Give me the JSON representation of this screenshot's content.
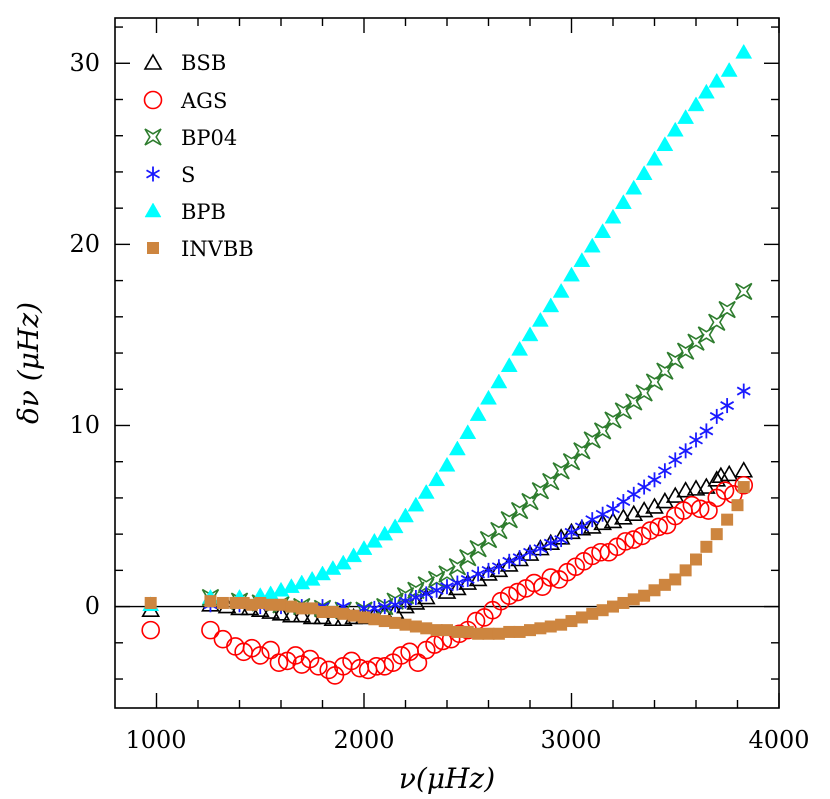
{
  "chart_data": {
    "type": "scatter",
    "title": "",
    "xlabel": "ν(μHz)",
    "ylabel": "δν (μHz)",
    "xlim": [
      800,
      4000
    ],
    "ylim": [
      -5.6,
      32.5
    ],
    "x_ticks": [
      1000,
      2000,
      3000,
      4000
    ],
    "y_ticks": [
      0,
      10,
      20,
      30
    ],
    "x_tick_labels": [
      "1000",
      "2000",
      "3000",
      "4000"
    ],
    "y_tick_labels": [
      "0",
      "10",
      "20",
      "30"
    ],
    "legend_position": "top-left",
    "grid": false,
    "zero_line": true,
    "series": [
      {
        "name": "BSB",
        "marker": "triangle-open",
        "color": "#000000",
        "points": [
          [
            972,
            -0.2
          ],
          [
            1260,
            0.1
          ],
          [
            1340,
            0.0
          ],
          [
            1400,
            -0.1
          ],
          [
            1450,
            -0.1
          ],
          [
            1500,
            -0.2
          ],
          [
            1550,
            -0.3
          ],
          [
            1600,
            -0.4
          ],
          [
            1650,
            -0.5
          ],
          [
            1700,
            -0.5
          ],
          [
            1750,
            -0.6
          ],
          [
            1800,
            -0.6
          ],
          [
            1850,
            -0.7
          ],
          [
            1900,
            -0.7
          ],
          [
            1950,
            -0.6
          ],
          [
            2000,
            -0.6
          ],
          [
            2050,
            -0.5
          ],
          [
            2100,
            -0.4
          ],
          [
            2150,
            -0.3
          ],
          [
            2200,
            0.0
          ],
          [
            2250,
            0.2
          ],
          [
            2300,
            0.5
          ],
          [
            2400,
            0.8
          ],
          [
            2450,
            1.0
          ],
          [
            2500,
            1.3
          ],
          [
            2550,
            1.5
          ],
          [
            2600,
            1.8
          ],
          [
            2650,
            2.0
          ],
          [
            2700,
            2.3
          ],
          [
            2750,
            2.6
          ],
          [
            2800,
            2.9
          ],
          [
            2850,
            3.2
          ],
          [
            2900,
            3.5
          ],
          [
            2950,
            3.8
          ],
          [
            3000,
            4.1
          ],
          [
            3050,
            4.3
          ],
          [
            3100,
            4.4
          ],
          [
            3150,
            4.6
          ],
          [
            3200,
            4.7
          ],
          [
            3250,
            4.9
          ],
          [
            3300,
            5.1
          ],
          [
            3350,
            5.3
          ],
          [
            3400,
            5.5
          ],
          [
            3450,
            5.8
          ],
          [
            3500,
            6.1
          ],
          [
            3550,
            6.4
          ],
          [
            3600,
            6.5
          ],
          [
            3650,
            6.6
          ],
          [
            3700,
            7.0
          ],
          [
            3720,
            7.2
          ],
          [
            3760,
            7.3
          ],
          [
            3830,
            7.5
          ]
        ]
      },
      {
        "name": "AGS",
        "marker": "circle-open",
        "color": "#ff0000",
        "points": [
          [
            972,
            -1.3
          ],
          [
            1260,
            -1.3
          ],
          [
            1320,
            -1.8
          ],
          [
            1380,
            -2.2
          ],
          [
            1420,
            -2.5
          ],
          [
            1460,
            -2.3
          ],
          [
            1500,
            -2.7
          ],
          [
            1550,
            -2.4
          ],
          [
            1590,
            -3.1
          ],
          [
            1630,
            -3.0
          ],
          [
            1670,
            -2.7
          ],
          [
            1700,
            -3.2
          ],
          [
            1740,
            -2.9
          ],
          [
            1780,
            -3.3
          ],
          [
            1830,
            -3.5
          ],
          [
            1860,
            -3.8
          ],
          [
            1900,
            -3.3
          ],
          [
            1940,
            -3.0
          ],
          [
            1980,
            -3.4
          ],
          [
            2020,
            -3.5
          ],
          [
            2060,
            -3.3
          ],
          [
            2100,
            -3.3
          ],
          [
            2140,
            -3.1
          ],
          [
            2180,
            -2.7
          ],
          [
            2220,
            -2.5
          ],
          [
            2260,
            -3.1
          ],
          [
            2300,
            -2.4
          ],
          [
            2340,
            -2.1
          ],
          [
            2380,
            -1.9
          ],
          [
            2420,
            -1.8
          ],
          [
            2460,
            -1.5
          ],
          [
            2500,
            -1.3
          ],
          [
            2540,
            -0.8
          ],
          [
            2580,
            -0.6
          ],
          [
            2620,
            -0.2
          ],
          [
            2660,
            0.3
          ],
          [
            2700,
            0.6
          ],
          [
            2740,
            0.8
          ],
          [
            2780,
            1.0
          ],
          [
            2820,
            1.3
          ],
          [
            2860,
            1.1
          ],
          [
            2900,
            1.6
          ],
          [
            2940,
            1.5
          ],
          [
            2980,
            1.9
          ],
          [
            3020,
            2.2
          ],
          [
            3060,
            2.5
          ],
          [
            3100,
            2.8
          ],
          [
            3140,
            3.0
          ],
          [
            3180,
            3.0
          ],
          [
            3220,
            3.3
          ],
          [
            3260,
            3.6
          ],
          [
            3300,
            3.7
          ],
          [
            3340,
            3.9
          ],
          [
            3380,
            4.2
          ],
          [
            3420,
            4.4
          ],
          [
            3460,
            4.5
          ],
          [
            3500,
            5.0
          ],
          [
            3540,
            5.3
          ],
          [
            3580,
            5.6
          ],
          [
            3620,
            5.4
          ],
          [
            3660,
            5.3
          ],
          [
            3700,
            6.0
          ],
          [
            3740,
            6.4
          ],
          [
            3780,
            6.2
          ],
          [
            3830,
            6.7
          ]
        ]
      },
      {
        "name": "BP04",
        "marker": "star4-open",
        "color": "#2e7d2e",
        "points": [
          [
            1260,
            0.5
          ],
          [
            1400,
            0.3
          ],
          [
            1500,
            0.2
          ],
          [
            1600,
            0.1
          ],
          [
            1700,
            0.0
          ],
          [
            1800,
            -0.1
          ],
          [
            1900,
            -0.2
          ],
          [
            2000,
            -0.2
          ],
          [
            2100,
            0.0
          ],
          [
            2150,
            0.3
          ],
          [
            2200,
            0.6
          ],
          [
            2250,
            0.9
          ],
          [
            2300,
            1.2
          ],
          [
            2350,
            1.5
          ],
          [
            2400,
            1.8
          ],
          [
            2450,
            2.2
          ],
          [
            2500,
            2.7
          ],
          [
            2550,
            3.2
          ],
          [
            2600,
            3.7
          ],
          [
            2650,
            4.2
          ],
          [
            2700,
            4.8
          ],
          [
            2750,
            5.3
          ],
          [
            2800,
            5.8
          ],
          [
            2850,
            6.4
          ],
          [
            2900,
            6.9
          ],
          [
            2950,
            7.5
          ],
          [
            3000,
            8.0
          ],
          [
            3050,
            8.6
          ],
          [
            3100,
            9.2
          ],
          [
            3150,
            9.7
          ],
          [
            3200,
            10.3
          ],
          [
            3250,
            10.8
          ],
          [
            3300,
            11.3
          ],
          [
            3350,
            11.8
          ],
          [
            3400,
            12.4
          ],
          [
            3450,
            13.0
          ],
          [
            3500,
            13.6
          ],
          [
            3550,
            14.1
          ],
          [
            3600,
            14.6
          ],
          [
            3650,
            15.0
          ],
          [
            3700,
            15.7
          ],
          [
            3750,
            16.4
          ],
          [
            3830,
            17.4
          ]
        ]
      },
      {
        "name": "S",
        "marker": "asterisk",
        "color": "#1a1aff",
        "points": [
          [
            1260,
            0.1
          ],
          [
            1400,
            0.1
          ],
          [
            1500,
            0.0
          ],
          [
            1600,
            0.0
          ],
          [
            1700,
            0.0
          ],
          [
            1800,
            0.0
          ],
          [
            1900,
            0.0
          ],
          [
            2000,
            -0.1
          ],
          [
            2050,
            -0.1
          ],
          [
            2100,
            0.0
          ],
          [
            2150,
            0.1
          ],
          [
            2200,
            0.3
          ],
          [
            2250,
            0.5
          ],
          [
            2300,
            0.7
          ],
          [
            2350,
            0.9
          ],
          [
            2400,
            1.1
          ],
          [
            2450,
            1.3
          ],
          [
            2500,
            1.5
          ],
          [
            2550,
            1.8
          ],
          [
            2600,
            2.0
          ],
          [
            2650,
            2.2
          ],
          [
            2700,
            2.5
          ],
          [
            2750,
            2.7
          ],
          [
            2800,
            3.0
          ],
          [
            2850,
            3.2
          ],
          [
            2900,
            3.5
          ],
          [
            2950,
            3.7
          ],
          [
            3000,
            4.1
          ],
          [
            3050,
            4.4
          ],
          [
            3100,
            4.8
          ],
          [
            3150,
            5.1
          ],
          [
            3200,
            5.4
          ],
          [
            3250,
            5.8
          ],
          [
            3300,
            6.2
          ],
          [
            3350,
            6.6
          ],
          [
            3400,
            7.0
          ],
          [
            3450,
            7.5
          ],
          [
            3500,
            8.1
          ],
          [
            3550,
            8.6
          ],
          [
            3600,
            9.2
          ],
          [
            3650,
            9.7
          ],
          [
            3700,
            10.5
          ],
          [
            3750,
            11.1
          ],
          [
            3830,
            11.9
          ]
        ]
      },
      {
        "name": "BPB",
        "marker": "triangle-filled",
        "color": "#00ffff",
        "points": [
          [
            972,
            0.1
          ],
          [
            1260,
            0.5
          ],
          [
            1400,
            0.5
          ],
          [
            1500,
            0.6
          ],
          [
            1550,
            0.7
          ],
          [
            1600,
            0.9
          ],
          [
            1650,
            1.1
          ],
          [
            1700,
            1.3
          ],
          [
            1750,
            1.5
          ],
          [
            1800,
            1.8
          ],
          [
            1850,
            2.1
          ],
          [
            1900,
            2.4
          ],
          [
            1950,
            2.8
          ],
          [
            2000,
            3.2
          ],
          [
            2050,
            3.6
          ],
          [
            2100,
            4.0
          ],
          [
            2150,
            4.4
          ],
          [
            2200,
            5.0
          ],
          [
            2250,
            5.6
          ],
          [
            2300,
            6.3
          ],
          [
            2350,
            7.0
          ],
          [
            2400,
            7.8
          ],
          [
            2450,
            8.7
          ],
          [
            2500,
            9.6
          ],
          [
            2550,
            10.6
          ],
          [
            2600,
            11.5
          ],
          [
            2650,
            12.4
          ],
          [
            2700,
            13.3
          ],
          [
            2750,
            14.2
          ],
          [
            2800,
            15.0
          ],
          [
            2850,
            15.8
          ],
          [
            2900,
            16.6
          ],
          [
            2950,
            17.4
          ],
          [
            3000,
            18.3
          ],
          [
            3050,
            19.1
          ],
          [
            3100,
            19.9
          ],
          [
            3150,
            20.7
          ],
          [
            3200,
            21.5
          ],
          [
            3250,
            22.3
          ],
          [
            3300,
            23.1
          ],
          [
            3350,
            23.9
          ],
          [
            3400,
            24.7
          ],
          [
            3450,
            25.5
          ],
          [
            3500,
            26.3
          ],
          [
            3550,
            27.0
          ],
          [
            3600,
            27.7
          ],
          [
            3650,
            28.4
          ],
          [
            3700,
            29.0
          ],
          [
            3760,
            29.6
          ],
          [
            3830,
            30.6
          ]
        ]
      },
      {
        "name": "INVBB",
        "marker": "square-filled",
        "color": "#cd853f",
        "points": [
          [
            972,
            0.2
          ],
          [
            1260,
            0.3
          ],
          [
            1320,
            0.2
          ],
          [
            1380,
            0.2
          ],
          [
            1420,
            0.2
          ],
          [
            1460,
            0.1
          ],
          [
            1500,
            0.2
          ],
          [
            1550,
            0.1
          ],
          [
            1600,
            0.1
          ],
          [
            1650,
            0.0
          ],
          [
            1700,
            -0.1
          ],
          [
            1750,
            -0.1
          ],
          [
            1800,
            -0.3
          ],
          [
            1850,
            -0.3
          ],
          [
            1900,
            -0.4
          ],
          [
            1950,
            -0.5
          ],
          [
            2000,
            -0.6
          ],
          [
            2050,
            -0.7
          ],
          [
            2100,
            -0.8
          ],
          [
            2150,
            -0.9
          ],
          [
            2200,
            -1.0
          ],
          [
            2250,
            -1.1
          ],
          [
            2300,
            -1.2
          ],
          [
            2350,
            -1.3
          ],
          [
            2400,
            -1.3
          ],
          [
            2450,
            -1.4
          ],
          [
            2500,
            -1.4
          ],
          [
            2550,
            -1.5
          ],
          [
            2600,
            -1.5
          ],
          [
            2650,
            -1.5
          ],
          [
            2700,
            -1.4
          ],
          [
            2750,
            -1.4
          ],
          [
            2800,
            -1.3
          ],
          [
            2850,
            -1.2
          ],
          [
            2900,
            -1.1
          ],
          [
            2950,
            -1.0
          ],
          [
            3000,
            -0.8
          ],
          [
            3050,
            -0.6
          ],
          [
            3100,
            -0.4
          ],
          [
            3150,
            -0.2
          ],
          [
            3200,
            0.0
          ],
          [
            3250,
            0.2
          ],
          [
            3300,
            0.4
          ],
          [
            3350,
            0.6
          ],
          [
            3400,
            0.9
          ],
          [
            3450,
            1.2
          ],
          [
            3500,
            1.5
          ],
          [
            3550,
            2.0
          ],
          [
            3600,
            2.6
          ],
          [
            3650,
            3.3
          ],
          [
            3700,
            4.0
          ],
          [
            3750,
            4.8
          ],
          [
            3800,
            5.6
          ],
          [
            3830,
            6.6
          ]
        ]
      }
    ]
  }
}
